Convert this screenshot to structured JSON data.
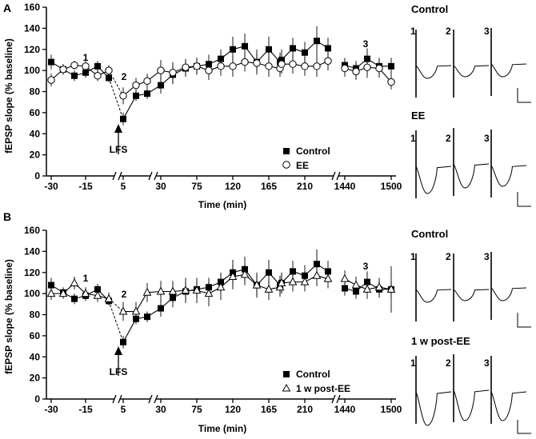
{
  "panels": [
    {
      "id": "A",
      "letter": "A",
      "ylabel": "fEPSP slope (% baseline)",
      "xlabel": "Time (min)",
      "stim_label": "LFS",
      "markers": [
        "1",
        "2",
        "3"
      ],
      "legend": [
        {
          "label": "Control",
          "marker": "filled-square"
        },
        {
          "label": "EE",
          "marker": "open-circle"
        }
      ],
      "traces": {
        "top_title": "Control",
        "bottom_title": "EE",
        "top_numbers": [
          "1",
          "2",
          "3"
        ],
        "bottom_numbers": [
          "1",
          "2",
          "3"
        ]
      }
    },
    {
      "id": "B",
      "letter": "B",
      "ylabel": "fEPSP slope (% baseline)",
      "xlabel": "Time (min)",
      "stim_label": "LFS",
      "markers": [
        "1",
        "2",
        "3"
      ],
      "legend": [
        {
          "label": "Control",
          "marker": "filled-square"
        },
        {
          "label": "1 w post-EE",
          "marker": "open-triangle"
        }
      ],
      "traces": {
        "top_title": "Control",
        "bottom_title": "1 w post-EE",
        "top_numbers": [
          "1",
          "2",
          "3"
        ],
        "bottom_numbers": [
          "1",
          "2",
          "3"
        ]
      }
    }
  ],
  "chart_data": [
    {
      "type": "line",
      "title": "A",
      "xlabel": "Time (min)",
      "ylabel": "fEPSP slope (% baseline)",
      "ylim": [
        0,
        160
      ],
      "yticks": [
        0,
        20,
        40,
        60,
        80,
        100,
        120,
        140,
        160
      ],
      "xtick_labels": [
        "-30",
        "-15",
        "5",
        "30",
        "75",
        "120",
        "165",
        "210",
        "1440",
        "1500"
      ],
      "x_positions": [
        0,
        1,
        2,
        3,
        4,
        5,
        6,
        7,
        8,
        9,
        10,
        11,
        12,
        13,
        14,
        15,
        16,
        17,
        18,
        19,
        20,
        21,
        22,
        23,
        24,
        25,
        26,
        27,
        28,
        29,
        30,
        31
      ],
      "series": [
        {
          "name": "Control",
          "marker": "filled-square",
          "values": [
            108,
            101,
            95,
            98,
            104,
            93,
            54,
            76,
            78,
            86,
            96,
            102,
            104,
            106,
            111,
            120,
            123,
            108,
            120,
            108,
            110,
            121,
            117,
            128,
            121,
            105,
            102,
            111,
            104,
            104
          ],
          "errors": [
            7,
            5,
            5,
            5,
            5,
            4,
            6,
            5,
            5,
            8,
            9,
            8,
            8,
            9,
            9,
            12,
            12,
            12,
            12,
            9,
            10,
            10,
            10,
            14,
            10,
            7,
            7,
            10,
            8,
            8
          ]
        },
        {
          "name": "EE",
          "marker": "open-circle",
          "values": [
            91,
            101,
            105,
            104,
            95,
            100,
            76,
            86,
            90,
            100,
            98,
            103,
            104,
            100,
            104,
            104,
            108,
            107,
            104,
            102,
            106,
            106,
            104,
            104,
            109,
            102,
            99,
            103,
            102,
            89
          ],
          "errors": [
            6,
            5,
            4,
            5,
            5,
            5,
            8,
            7,
            7,
            10,
            10,
            8,
            8,
            9,
            9,
            10,
            9,
            9,
            10,
            8,
            9,
            9,
            9,
            10,
            9,
            8,
            8,
            10,
            9,
            7
          ]
        }
      ],
      "series_x": [
        [
          0,
          1,
          2,
          3,
          4,
          5,
          6,
          7,
          8,
          9,
          10,
          11,
          12,
          13,
          14,
          15,
          16,
          17,
          18,
          19,
          20,
          21,
          22,
          23,
          24,
          25,
          26,
          27,
          28,
          29
        ],
        [
          0,
          1,
          2,
          3,
          4,
          5,
          6,
          7,
          8,
          9,
          10,
          11,
          12,
          13,
          14,
          15,
          16,
          17,
          18,
          19,
          20,
          21,
          22,
          23,
          24,
          25,
          26,
          27,
          28,
          29
        ]
      ]
    },
    {
      "type": "line",
      "title": "B",
      "xlabel": "Time (min)",
      "ylabel": "fEPSP slope (% baseline)",
      "ylim": [
        0,
        160
      ],
      "yticks": [
        0,
        20,
        40,
        60,
        80,
        100,
        120,
        140,
        160
      ],
      "xtick_labels": [
        "-30",
        "-15",
        "5",
        "30",
        "75",
        "120",
        "165",
        "210",
        "1440",
        "1500"
      ],
      "series": [
        {
          "name": "Control",
          "marker": "filled-square",
          "values": [
            108,
            101,
            95,
            98,
            104,
            93,
            54,
            76,
            78,
            86,
            96,
            102,
            104,
            106,
            111,
            120,
            123,
            108,
            120,
            108,
            110,
            121,
            117,
            128,
            121,
            105,
            102,
            111,
            104,
            104
          ],
          "errors": [
            7,
            5,
            5,
            5,
            5,
            4,
            6,
            5,
            5,
            8,
            9,
            8,
            8,
            9,
            9,
            12,
            12,
            12,
            12,
            9,
            10,
            10,
            10,
            14,
            10,
            7,
            7,
            10,
            8,
            8
          ]
        },
        {
          "name": "1 w post-EE",
          "marker": "open-triangle",
          "values": [
            100,
            100,
            110,
            100,
            98,
            95,
            83,
            83,
            101,
            102,
            102,
            103,
            103,
            100,
            106,
            116,
            118,
            108,
            104,
            106,
            110,
            111,
            111,
            117,
            114,
            114,
            108,
            104,
            106,
            104
          ],
          "errors": [
            6,
            5,
            6,
            6,
            6,
            6,
            9,
            9,
            9,
            10,
            10,
            12,
            12,
            12,
            12,
            12,
            10,
            10,
            10,
            9,
            9,
            9,
            9,
            10,
            9,
            8,
            8,
            9,
            9,
            22
          ]
        }
      ]
    }
  ]
}
